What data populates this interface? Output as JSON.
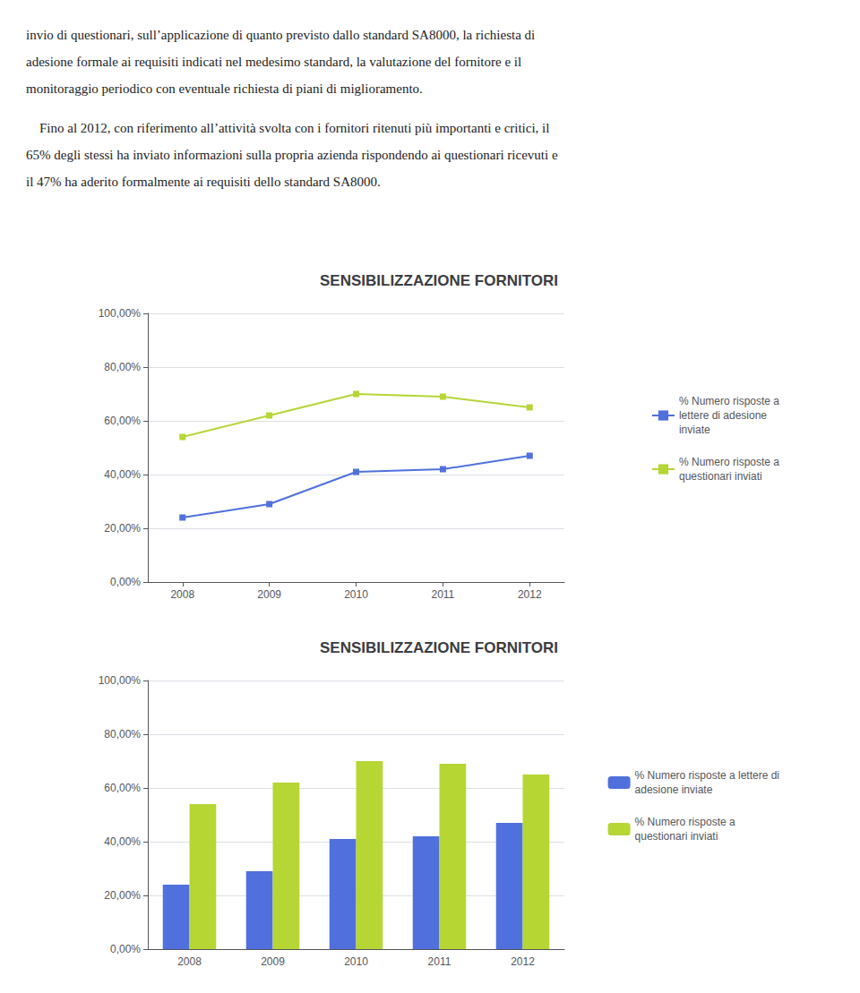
{
  "chart_data": [
    {
      "type": "line",
      "title": "SENSIBILIZZAZIONE FORNITORI",
      "annotations": [
        "invio di questionari, sull’applicazione di quanto previsto dallo standard SA8000, la richiesta di\nadesione formale ai requisiti indicati nel medesimo standard, la valutazione del fornitore e il\nmonitoraggio periodico con eventuale richiesta di piani di miglioramento.",
        "    Fino al 2012, con riferimento all’attività svolta con i fornitori ritenuti più importanti e critici, il\n65% degli stessi ha inviato informazioni sulla propria azienda rispondendo ai questionari ricevuti e\nil 47% ha aderito formalmente ai requisiti dello standard SA8000."
      ],
      "x": [
        2008,
        2009,
        2010,
        2011,
        2012
      ],
      "xlim": [
        2007.6,
        2012.4
      ],
      "xticks": [
        2008,
        2009,
        2010,
        2011,
        2012
      ],
      "ylim": [
        0,
        1.0
      ],
      "yticks": [
        {
          "value": 0.0,
          "label": "0,00%"
        },
        {
          "value": 0.2,
          "label": "20,00%"
        },
        {
          "value": 0.4,
          "label": "40,00%"
        },
        {
          "value": 0.6,
          "label": "60,00%"
        },
        {
          "value": 0.8,
          "label": "80,00%"
        },
        {
          "value": 1.0,
          "label": "100,00%"
        }
      ],
      "grid": true,
      "legend": "right",
      "marker": "square",
      "series": [
        {
          "name": "% Numero risposte a\nlettere di adesione\ninviate",
          "values": [
            0.24,
            0.29,
            0.41,
            0.42,
            0.47
          ]
        },
        {
          "name": "% Numero risposte a\nquestionari inviati",
          "values": [
            0.54,
            0.62,
            0.7,
            0.69,
            0.65
          ]
        }
      ]
    },
    {
      "type": "bar",
      "title": "SENSIBILIZZAZIONE FORNITORI",
      "categories": [
        "2008",
        "2009",
        "2010",
        "2011",
        "2012"
      ],
      "ylim": [
        0,
        1.0
      ],
      "yticks": [
        {
          "value": 0.0,
          "label": "0,00%"
        },
        {
          "value": 0.2,
          "label": "20,00%"
        },
        {
          "value": 0.4,
          "label": "40,00%"
        },
        {
          "value": 0.6,
          "label": "60,00%"
        },
        {
          "value": 0.8,
          "label": "80,00%"
        },
        {
          "value": 1.0,
          "label": "100,00%"
        }
      ],
      "grid": true,
      "legend": "right",
      "series": [
        {
          "name": "% Numero risposte a lettere di\nadesione inviate",
          "values": [
            0.24,
            0.29,
            0.41,
            0.42,
            0.47
          ]
        },
        {
          "name": "% Numero risposte a\nquestionari inviati",
          "values": [
            0.54,
            0.62,
            0.7,
            0.69,
            0.65
          ]
        }
      ]
    }
  ]
}
